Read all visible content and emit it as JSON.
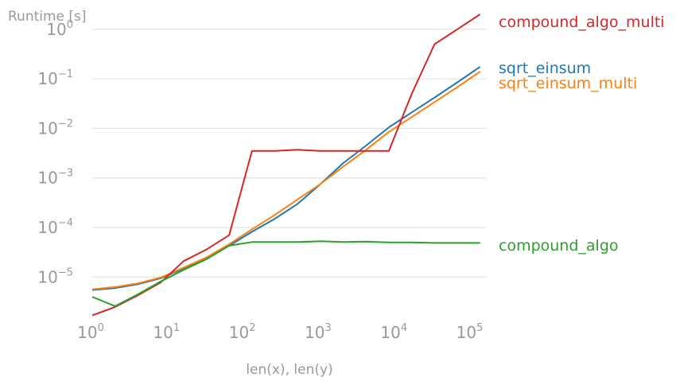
{
  "chart_data": {
    "type": "line",
    "title": "",
    "ylabel": "Runtime [s]",
    "xlabel": "len(x), len(y)",
    "xscale": "log",
    "yscale": "log",
    "xlim": [
      1,
      160000
    ],
    "ylim": [
      1.6e-06,
      2
    ],
    "grid": "horizontal",
    "legend": "right-edge labels",
    "x_ticks": [
      {
        "value": 1,
        "base": "10",
        "exp": "0"
      },
      {
        "value": 10,
        "base": "10",
        "exp": "1"
      },
      {
        "value": 100,
        "base": "10",
        "exp": "2"
      },
      {
        "value": 1000,
        "base": "10",
        "exp": "3"
      },
      {
        "value": 10000,
        "base": "10",
        "exp": "4"
      },
      {
        "value": 100000,
        "base": "10",
        "exp": "5"
      }
    ],
    "y_ticks": [
      {
        "value": 1e-05,
        "base": "10",
        "exp": "−5"
      },
      {
        "value": 0.0001,
        "base": "10",
        "exp": "−4"
      },
      {
        "value": 0.001,
        "base": "10",
        "exp": "−3"
      },
      {
        "value": 0.01,
        "base": "10",
        "exp": "−2"
      },
      {
        "value": 0.1,
        "base": "10",
        "exp": "−1"
      },
      {
        "value": 1,
        "base": "10",
        "exp": "0"
      }
    ],
    "series": [
      {
        "name": "sqrt_einsum",
        "color": "#1f77b4",
        "x": [
          1,
          2,
          4,
          8,
          16,
          32,
          64,
          128,
          256,
          512,
          1024,
          2048,
          4096,
          8192,
          16384,
          32768,
          65536,
          131072
        ],
        "y": [
          5.5e-06,
          6e-06,
          7.2e-06,
          9.5e-06,
          1.5e-05,
          2.4e-05,
          4.3e-05,
          8.2e-05,
          0.00015,
          0.0003,
          0.00075,
          0.002,
          0.0045,
          0.0105,
          0.021,
          0.042,
          0.085,
          0.175
        ]
      },
      {
        "name": "sqrt_einsum_multi",
        "color": "#ff7f0e",
        "x": [
          1,
          2,
          4,
          8,
          16,
          32,
          64,
          128,
          256,
          512,
          1024,
          2048,
          4096,
          8192,
          16384,
          32768,
          65536,
          131072
        ],
        "y": [
          5.7e-06,
          6.3e-06,
          7.5e-06,
          9.8e-06,
          1.55e-05,
          2.5e-05,
          4.6e-05,
          9.2e-05,
          0.00018,
          0.00037,
          0.00075,
          0.0017,
          0.0037,
          0.0085,
          0.017,
          0.034,
          0.068,
          0.14
        ]
      },
      {
        "name": "compound_algo_multi",
        "color": "#d62728",
        "x": [
          1,
          2,
          4,
          8,
          16,
          32,
          64,
          128,
          256,
          512,
          1024,
          2048,
          4096,
          8192,
          16384,
          32768,
          65536,
          131072
        ],
        "y": [
          1.7e-06,
          2.5e-06,
          4.3e-06,
          7.8e-06,
          2.1e-05,
          3.6e-05,
          7e-05,
          0.0035,
          0.0035,
          0.0037,
          0.0035,
          0.0035,
          0.0035,
          0.0035,
          0.05,
          0.5,
          1,
          2
        ]
      },
      {
        "name": "compound_algo",
        "color": "#2ca02c",
        "x": [
          1,
          2,
          4,
          8,
          16,
          32,
          64,
          128,
          256,
          512,
          1024,
          2048,
          4096,
          8192,
          16384,
          32768,
          65536,
          131072
        ],
        "y": [
          4e-06,
          2.6e-06,
          4.5e-06,
          8.2e-06,
          1.4e-05,
          2.3e-05,
          4.3e-05,
          5.1e-05,
          5.1e-05,
          5.1e-05,
          5.3e-05,
          5.1e-05,
          5.2e-05,
          5e-05,
          5e-05,
          4.9e-05,
          4.9e-05,
          4.9e-05
        ]
      }
    ]
  }
}
